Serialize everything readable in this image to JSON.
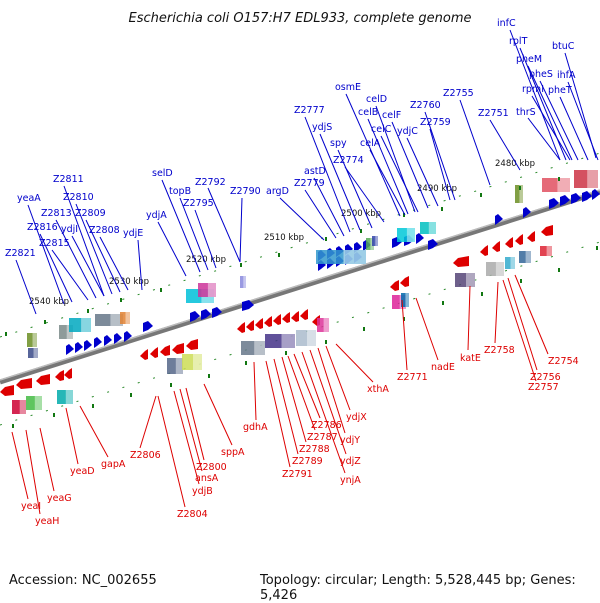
{
  "title": "Escherichia coli O157:H7 EDL933, complete genome",
  "footer": {
    "accession": "Accession: NC_002655",
    "info": "Topology: circular; Length: 5,528,445 bp; Genes: 5,426"
  },
  "scale_labels": [
    "2480 kbp",
    "2490 kbp",
    "2500 kbp",
    "2510 kbp",
    "2520 kbp",
    "2530 kbp",
    "2540 kbp"
  ],
  "forward_genes": [
    "infC",
    "rplT",
    "pheM",
    "pheS",
    "pheT",
    "btuC",
    "ihfA",
    "rpmI",
    "thrS",
    "Z2751",
    "Z2755",
    "Z2760",
    "Z2759",
    "Z2774",
    "osmE",
    "celD",
    "celB",
    "celF",
    "celC",
    "celA",
    "ydjC",
    "Z2777",
    "ydjS",
    "spy",
    "astD",
    "Z2779",
    "argD",
    "Z2792",
    "Z2790",
    "Z2795",
    "topB",
    "selD",
    "ydjA",
    "ydjE",
    "Z2808",
    "Z2809",
    "Z2810",
    "Z2811",
    "ydjI",
    "Z2813",
    "yeaA",
    "Z2816",
    "Z2815",
    "Z2821"
  ],
  "reverse_genes": [
    "Z2754",
    "Z2756",
    "Z2757",
    "Z2758",
    "katE",
    "nadE",
    "Z2771",
    "xthA",
    "ydjX",
    "ydjY",
    "ydjZ",
    "ynjA",
    "Z2786",
    "Z2787",
    "Z2788",
    "Z2789",
    "Z2791",
    "gdhA",
    "sppA",
    "Z2800",
    "ansA",
    "ydjB",
    "Z2804",
    "Z2806",
    "gapA",
    "yeaD",
    "yeaG",
    "yeaH",
    "yeaI"
  ],
  "colors": {
    "forward": "#0000cc",
    "reverse": "#dd0000",
    "backbone": "#888888",
    "tick": "#117711"
  }
}
